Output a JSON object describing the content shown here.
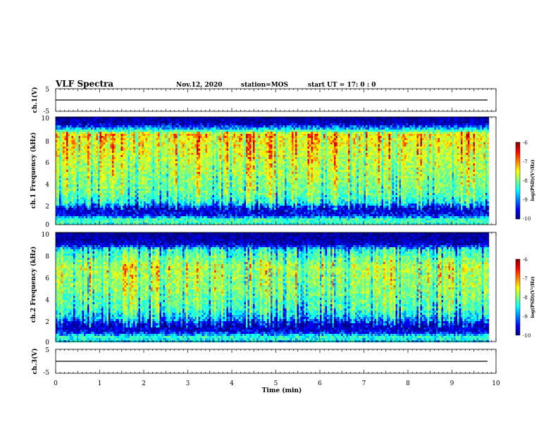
{
  "header": {
    "title": "VLF Spectra",
    "date": "Nov.12, 2020",
    "station": "station=MOS",
    "start": "start UT =   17: 0  : 0"
  },
  "chart_data": [
    {
      "type": "line",
      "panel": "ch1-waveform",
      "ylabel": "ch.1(V)",
      "ylim": [
        -5,
        5
      ],
      "ytick_labels": [
        "5",
        "-5"
      ],
      "x": [
        0,
        10
      ],
      "series": [
        {
          "values": [
            -2,
            -2
          ]
        }
      ]
    },
    {
      "type": "heatmap",
      "panel": "ch1-spectrogram",
      "ylabel": "ch.1 Frequency (kHz)",
      "ylim": [
        0,
        10
      ],
      "xlim": [
        0,
        10
      ],
      "data_xmax": 9.8,
      "ytick_labels": [
        "0",
        "2",
        "4",
        "6",
        "8",
        "10"
      ],
      "colorbar": {
        "label": "log(PSD)(V²/Hz)",
        "range": [
          -10,
          -6
        ],
        "tick_labels": [
          "-6",
          "-7",
          "-8",
          "-9",
          "-10"
        ]
      },
      "intensity_profile": {
        "freq_khz": [
          0,
          0.5,
          1,
          1.6,
          2.2,
          3,
          5,
          7,
          8.5,
          9,
          9.5,
          10
        ],
        "log_psd": [
          -8.6,
          -8.2,
          -9.4,
          -9.6,
          -8.6,
          -8.2,
          -7.9,
          -7.6,
          -7.4,
          -8.8,
          -9.7,
          -9.8
        ]
      }
    },
    {
      "type": "heatmap",
      "panel": "ch2-spectrogram",
      "ylabel": "ch.2 Frequency (kHz)",
      "ylim": [
        0,
        10
      ],
      "xlim": [
        0,
        10
      ],
      "data_xmax": 9.8,
      "ytick_labels": [
        "0",
        "2",
        "4",
        "6",
        "8",
        "10"
      ],
      "colorbar": {
        "label": "log(PSD)(V²/Hz)",
        "range": [
          -10,
          -6
        ],
        "tick_labels": [
          "-6",
          "-7",
          "-8",
          "-9",
          "-10"
        ]
      },
      "intensity_profile": {
        "freq_khz": [
          0,
          0.5,
          1,
          1.6,
          2.2,
          3,
          5,
          7,
          8.5,
          9,
          9.5,
          10
        ],
        "log_psd": [
          -8.8,
          -8.4,
          -9.5,
          -9.7,
          -8.9,
          -8.4,
          -8.0,
          -7.8,
          -8.6,
          -9.6,
          -9.8,
          -9.9
        ]
      }
    },
    {
      "type": "line",
      "panel": "ch3-waveform",
      "ylabel": "ch.3(V)",
      "ylim": [
        -5,
        5
      ],
      "ytick_labels": [
        "5",
        "-5"
      ],
      "x": [
        0,
        10
      ],
      "series": [
        {
          "values": [
            -2,
            -2
          ]
        }
      ]
    }
  ],
  "x_axis": {
    "label": "Time (min)",
    "range": [
      0,
      10
    ],
    "tick_labels": [
      "0",
      "1",
      "2",
      "3",
      "4",
      "5",
      "6",
      "7",
      "8",
      "9",
      "10"
    ]
  },
  "colors": {
    "colormap": [
      "#00007f",
      "#0000ff",
      "#00ffff",
      "#7fff7f",
      "#ffff00",
      "#ff0000",
      "#7f0000"
    ]
  }
}
